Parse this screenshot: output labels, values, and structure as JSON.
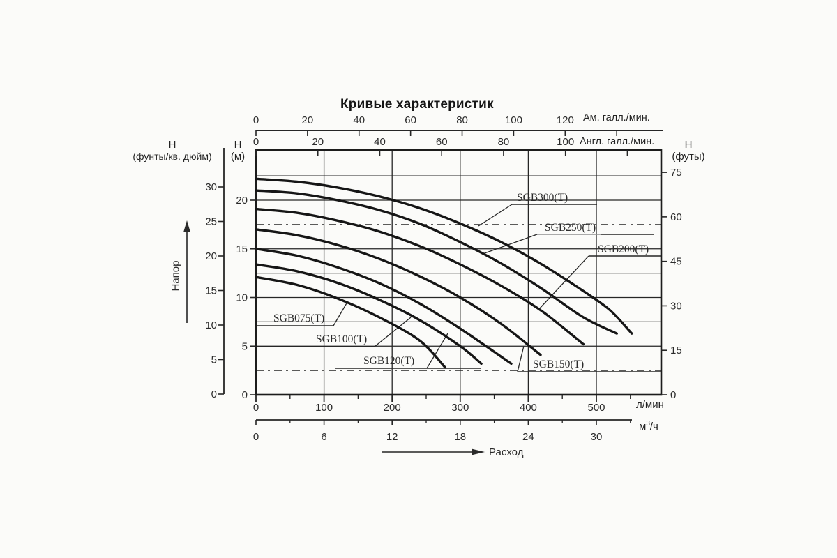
{
  "page": {
    "background": "#fbfbf9",
    "ink_color": "#1f1f1f",
    "curve_color": "#161616",
    "grid_color": "#262626",
    "gray_line_color": "#909090"
  },
  "chart_data": {
    "type": "line",
    "title": "Кривые характеристик",
    "axes": {
      "top_us_gpm": {
        "label": "Ам. галл./мин.",
        "ticks": [
          0,
          20,
          40,
          60,
          80,
          100,
          120
        ],
        "unlabeled_ticks": [
          140
        ],
        "lpm_per_unit": 3.785
      },
      "top_imp_gpm": {
        "label": "Англ. галл./мин.",
        "ticks": [
          0,
          20,
          40,
          60,
          80,
          100
        ],
        "unlabeled_ticks": [
          120
        ],
        "lpm_per_unit": 4.546
      },
      "bottom_lpm": {
        "label": "л/мин",
        "ticks": [
          0,
          100,
          200,
          300,
          400,
          500
        ],
        "minor_ticks": [
          50,
          150,
          250,
          350,
          450,
          550
        ]
      },
      "bottom_m3h": {
        "label_base": "м",
        "label_sup": "3",
        "label_rest": "/ч",
        "ticks": [
          0,
          6,
          12,
          18,
          24,
          30
        ],
        "minor_ticks": [
          3,
          9,
          15,
          21,
          27,
          33
        ],
        "lpm_per_unit": 16.6667
      },
      "left_psi": {
        "header_line1": "Н",
        "header_line2": "(фунты/кв. дюйм)",
        "ticks": [
          0,
          5,
          10,
          15,
          20,
          25,
          30
        ]
      },
      "left_m": {
        "header_line1": "Н",
        "header_line2": "(м)",
        "ticks": [
          0,
          5,
          10,
          15,
          20
        ]
      },
      "right_ft": {
        "header_line1": "Н",
        "header_line2": "(футы)",
        "ticks": [
          0,
          15,
          30,
          45,
          60,
          75
        ],
        "m_per_unit": 0.3048
      }
    },
    "grid": {
      "x_lpm": [
        100,
        200,
        300,
        400,
        500
      ],
      "y_m": [
        2.5,
        5,
        7.5,
        10,
        12.5,
        15,
        17.5,
        20,
        22.5
      ],
      "dashed_y_m": [
        2.5,
        17.5
      ]
    },
    "xlim_lpm": [
      0,
      595
    ],
    "ylim_m": [
      0,
      25.2
    ],
    "annotations": {
      "head": "Напор",
      "flow": "Расход"
    },
    "series": [
      {
        "name": "SGB300(T)",
        "points_lpm_m": [
          [
            0,
            22.2
          ],
          [
            60,
            21.9
          ],
          [
            120,
            21.3
          ],
          [
            180,
            20.4
          ],
          [
            240,
            19.2
          ],
          [
            300,
            17.6
          ],
          [
            360,
            15.7
          ],
          [
            420,
            13.4
          ],
          [
            480,
            10.7
          ],
          [
            520,
            8.7
          ],
          [
            552,
            6.3
          ]
        ]
      },
      {
        "name": "SGB250(T)",
        "points_lpm_m": [
          [
            0,
            21.0
          ],
          [
            60,
            20.7
          ],
          [
            120,
            20.0
          ],
          [
            180,
            19.0
          ],
          [
            240,
            17.6
          ],
          [
            300,
            15.7
          ],
          [
            360,
            13.5
          ],
          [
            420,
            10.9
          ],
          [
            480,
            8.0
          ],
          [
            530,
            6.3
          ]
        ]
      },
      {
        "name": "SGB200(T)",
        "points_lpm_m": [
          [
            0,
            19.1
          ],
          [
            60,
            18.7
          ],
          [
            120,
            17.9
          ],
          [
            180,
            16.8
          ],
          [
            240,
            15.3
          ],
          [
            300,
            13.4
          ],
          [
            360,
            11.2
          ],
          [
            420,
            8.6
          ],
          [
            481,
            5.2
          ]
        ]
      },
      {
        "name": "SGB150(T)",
        "points_lpm_m": [
          [
            0,
            17.0
          ],
          [
            60,
            16.4
          ],
          [
            120,
            15.4
          ],
          [
            180,
            14.0
          ],
          [
            240,
            12.2
          ],
          [
            300,
            10.0
          ],
          [
            360,
            7.3
          ],
          [
            418,
            4.1
          ]
        ]
      },
      {
        "name": "SGB120(T)",
        "points_lpm_m": [
          [
            0,
            15.0
          ],
          [
            60,
            14.3
          ],
          [
            120,
            13.1
          ],
          [
            180,
            11.5
          ],
          [
            240,
            9.4
          ],
          [
            300,
            6.8
          ],
          [
            375,
            3.2
          ]
        ]
      },
      {
        "name": "SGB100(T)",
        "points_lpm_m": [
          [
            0,
            13.4
          ],
          [
            60,
            12.7
          ],
          [
            120,
            11.5
          ],
          [
            180,
            9.8
          ],
          [
            240,
            7.7
          ],
          [
            300,
            5.0
          ],
          [
            331,
            3.2
          ]
        ]
      },
      {
        "name": "SGB075(T)",
        "points_lpm_m": [
          [
            0,
            12.1
          ],
          [
            60,
            11.3
          ],
          [
            120,
            9.9
          ],
          [
            180,
            8.0
          ],
          [
            240,
            5.6
          ],
          [
            278,
            2.8
          ]
        ]
      }
    ]
  }
}
